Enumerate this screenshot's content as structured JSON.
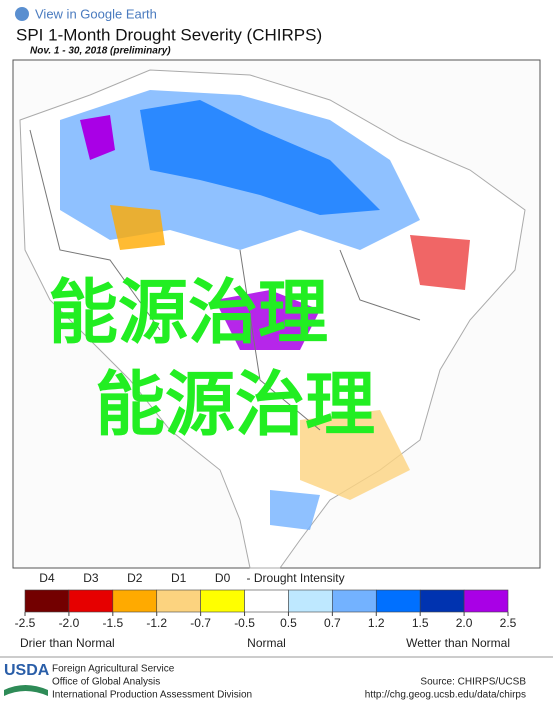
{
  "header": {
    "link": "View in Google Earth",
    "title": "SPI 1-Month Drought Severity (CHIRPS)",
    "subtitle": "Nov. 1 - 30, 2018 (preliminary)"
  },
  "overlay": {
    "lines": [
      "能源治理",
      "能源治理"
    ]
  },
  "legend": {
    "classes": [
      "D4",
      "D3",
      "D2",
      "D1",
      "D0"
    ],
    "classes_title": "- Drought Intensity",
    "colors": [
      "#730000",
      "#e60000",
      "#ffaa00",
      "#fcd37f",
      "#ffff00",
      "#ffffff",
      "#bee8ff",
      "#73b2ff",
      "#0070ff",
      "#0033b0",
      "#a900e6"
    ],
    "ticks": [
      -2.5,
      {
        "value": -2,
        "label": "-2.0"
      },
      -1.5,
      -1.2,
      -0.7,
      -0.5,
      0.5,
      0.7,
      1.2,
      1.5,
      {
        "value": 2,
        "label": "2.0"
      },
      2.5
    ],
    "descriptions": [
      "Drier than Normal",
      "Normal",
      "Wetter than Normal"
    ]
  },
  "footer": {
    "logo": "USDA",
    "agency": [
      "Foreign Agricultural Service",
      "Office of Global Analysis",
      "International Production Assessment Division"
    ],
    "source": "Source: CHIRPS/UCSB",
    "url": "http://chg.geog.ucsb.edu/data/chirps"
  }
}
